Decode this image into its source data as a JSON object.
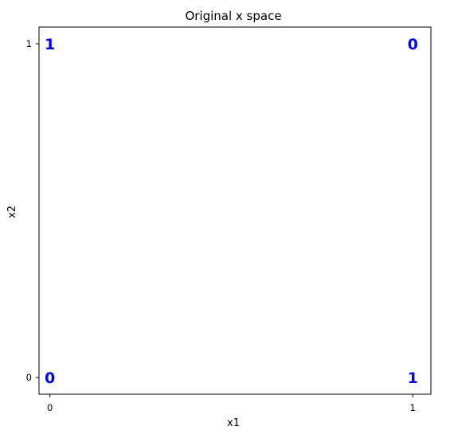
{
  "chart_data": {
    "type": "scatter",
    "title": "Original x space",
    "xlabel": "x1",
    "ylabel": "x2",
    "xlim": [
      -0.03,
      1.05
    ],
    "ylim": [
      -0.05,
      1.05
    ],
    "xticks": [
      0,
      1
    ],
    "yticks": [
      0,
      1
    ],
    "xtick_labels": [
      "0",
      "1"
    ],
    "ytick_labels": [
      "0",
      "1"
    ],
    "grid": false,
    "label_color": "#0000ff",
    "points": [
      {
        "x": 0,
        "y": 0,
        "label": "0"
      },
      {
        "x": 0,
        "y": 1,
        "label": "1"
      },
      {
        "x": 1,
        "y": 0,
        "label": "1"
      },
      {
        "x": 1,
        "y": 1,
        "label": "0"
      }
    ]
  }
}
